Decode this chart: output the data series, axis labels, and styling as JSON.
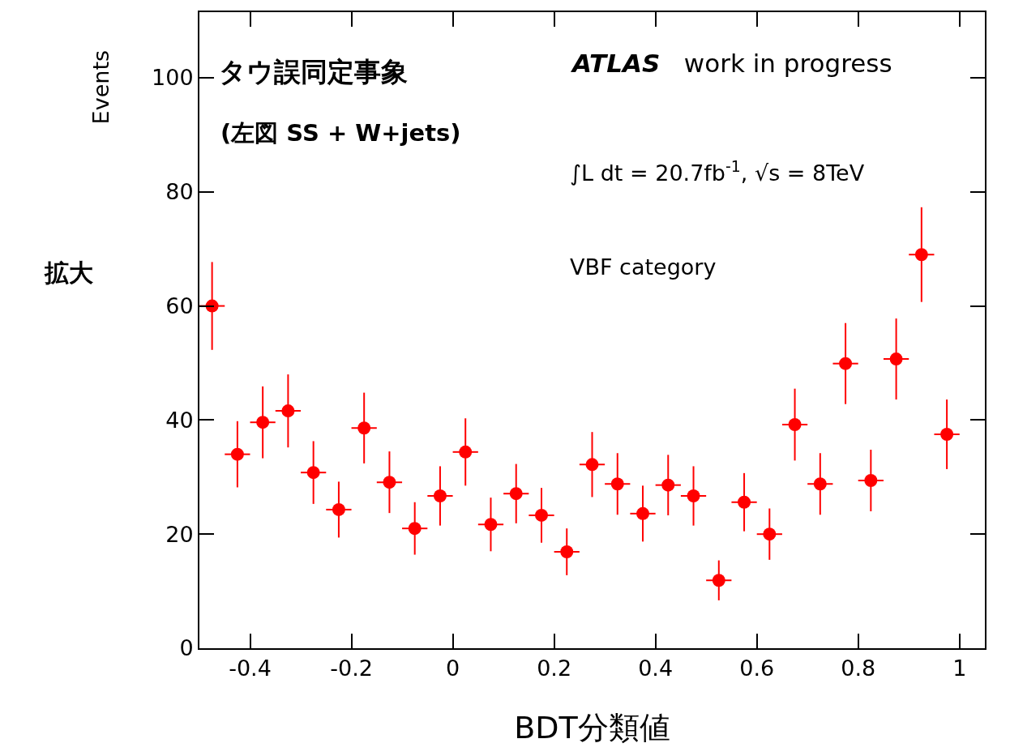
{
  "chart_data": {
    "type": "scatter",
    "title": "タウ誤同定事象",
    "subtitle": "(左図 SS + W+jets)",
    "xlabel": "BDT分類値",
    "ylabel": "Events",
    "x": [
      -0.475,
      -0.425,
      -0.375,
      -0.325,
      -0.275,
      -0.225,
      -0.175,
      -0.125,
      -0.075,
      -0.025,
      0.025,
      0.075,
      0.125,
      0.175,
      0.225,
      0.275,
      0.325,
      0.375,
      0.425,
      0.475,
      0.525,
      0.575,
      0.625,
      0.675,
      0.725,
      0.775,
      0.825,
      0.875,
      0.925,
      0.975
    ],
    "series": [
      {
        "color": "#ff0000",
        "values": [
          60,
          34,
          39.6,
          41.6,
          30.8,
          24.3,
          38.6,
          29.1,
          21,
          26.7,
          34.4,
          21.7,
          27.1,
          23.3,
          16.9,
          32.2,
          28.8,
          23.6,
          28.6,
          26.7,
          11.9,
          25.6,
          20,
          39.2,
          28.8,
          49.9,
          29.4,
          50.7,
          69,
          37.5
        ],
        "errors": [
          7.7,
          5.8,
          6.3,
          6.4,
          5.5,
          4.9,
          6.2,
          5.4,
          4.6,
          5.2,
          5.9,
          4.7,
          5.2,
          4.8,
          4.1,
          5.7,
          5.4,
          4.9,
          5.3,
          5.2,
          3.5,
          5.1,
          4.5,
          6.3,
          5.4,
          7.1,
          5.4,
          7.1,
          8.3,
          6.1
        ],
        "xerrors": [
          0.025,
          0.025,
          0.025,
          0.025,
          0.025,
          0.025,
          0.025,
          0.025,
          0.025,
          0.025,
          0.025,
          0.025,
          0.025,
          0.025,
          0.025,
          0.025,
          0.025,
          0.025,
          0.025,
          0.025,
          0.025,
          0.025,
          0.025,
          0.025,
          0.025,
          0.025,
          0.025,
          0.025,
          0.025,
          0.025
        ]
      }
    ],
    "xlim": [
      -0.5,
      1.05
    ],
    "xticks": [
      -0.4,
      -0.2,
      0,
      0.2,
      0.4,
      0.6,
      0.8,
      1
    ],
    "ylim": [
      0,
      111.5
    ],
    "yticks": [
      0,
      20,
      40,
      60,
      80,
      100
    ],
    "marker": "circle",
    "annotations": [
      "ATLAS   work in progress",
      "∫L dt = 20.7fb$^{-1}$, √s = 8TeV",
      "VBF category",
      "拡大"
    ]
  }
}
